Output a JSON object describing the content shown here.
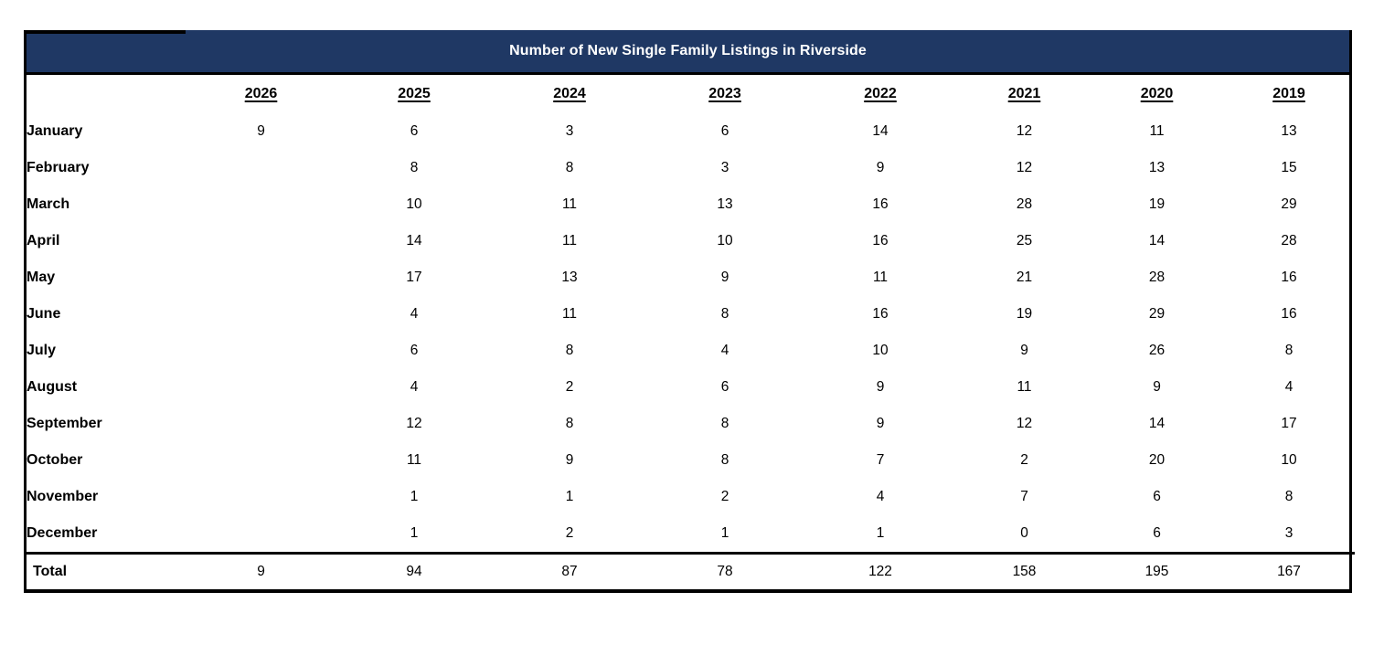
{
  "table": {
    "title": "Number of New Single Family Listings in Riverside",
    "columns": [
      "2026",
      "2025",
      "2024",
      "2023",
      "2022",
      "2021",
      "2020",
      "2019"
    ],
    "rows": [
      {
        "label": "January",
        "values": [
          "9",
          "6",
          "3",
          "6",
          "14",
          "12",
          "11",
          "13"
        ]
      },
      {
        "label": "February",
        "values": [
          "",
          "8",
          "8",
          "3",
          "9",
          "12",
          "13",
          "15"
        ]
      },
      {
        "label": "March",
        "values": [
          "",
          "10",
          "11",
          "13",
          "16",
          "28",
          "19",
          "29"
        ]
      },
      {
        "label": "April",
        "values": [
          "",
          "14",
          "11",
          "10",
          "16",
          "25",
          "14",
          "28"
        ]
      },
      {
        "label": "May",
        "values": [
          "",
          "17",
          "13",
          "9",
          "11",
          "21",
          "28",
          "16"
        ]
      },
      {
        "label": "June",
        "values": [
          "",
          "4",
          "11",
          "8",
          "16",
          "19",
          "29",
          "16"
        ]
      },
      {
        "label": "July",
        "values": [
          "",
          "6",
          "8",
          "4",
          "10",
          "9",
          "26",
          "8"
        ]
      },
      {
        "label": "August",
        "values": [
          "",
          "4",
          "2",
          "6",
          "9",
          "11",
          "9",
          "4"
        ]
      },
      {
        "label": "September",
        "values": [
          "",
          "12",
          "8",
          "8",
          "9",
          "12",
          "14",
          "17"
        ]
      },
      {
        "label": "October",
        "values": [
          "",
          "11",
          "9",
          "8",
          "7",
          "2",
          "20",
          "10"
        ]
      },
      {
        "label": "November",
        "values": [
          "",
          "1",
          "1",
          "2",
          "4",
          "7",
          "6",
          "8"
        ]
      },
      {
        "label": "December",
        "values": [
          "",
          "1",
          "2",
          "1",
          "1",
          "0",
          "6",
          "3"
        ]
      }
    ],
    "total": {
      "label": "Total",
      "values": [
        "9",
        "94",
        "87",
        "78",
        "122",
        "158",
        "195",
        "167"
      ]
    }
  },
  "colors": {
    "header_bg": "#1f3864",
    "header_text": "#ffffff",
    "border": "#000000"
  }
}
